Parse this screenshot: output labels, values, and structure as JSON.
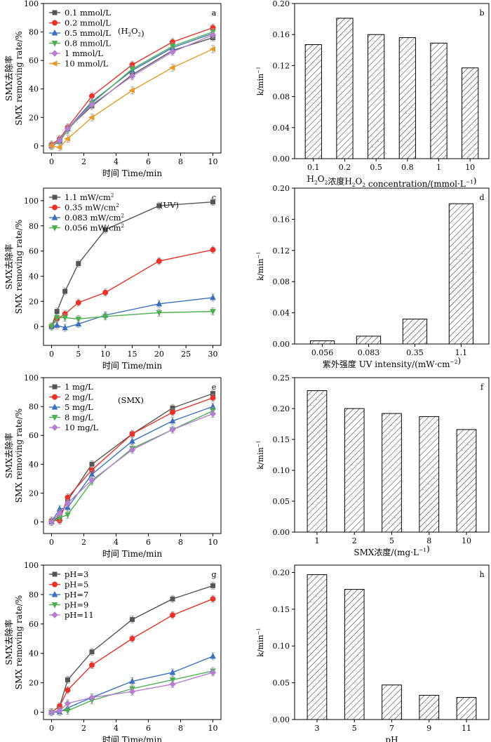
{
  "chart_data": [
    {
      "type": "line",
      "panel_letter": "a",
      "xlabel": "时间 Time/min",
      "ylabel_cn": "SMX去除率",
      "ylabel_en": "SMX removing rate/%",
      "xlim": [
        -0.5,
        10.5
      ],
      "ylim": [
        -5,
        100
      ],
      "xticks": [
        0,
        2,
        4,
        6,
        8,
        10
      ],
      "yticks": [
        0,
        20,
        40,
        60,
        80,
        100
      ],
      "legend_note": "(H2O2)",
      "legend_placement": "top-left",
      "series": [
        {
          "name": "0.1 mmol/L",
          "color": "#555555",
          "marker": "square",
          "x": [
            0,
            0.5,
            1,
            2.5,
            5,
            7.5,
            10
          ],
          "y": [
            0,
            3,
            12,
            28,
            50,
            67,
            76
          ]
        },
        {
          "name": "0.2 mmol/L",
          "color": "#e8332a",
          "marker": "circle",
          "x": [
            0,
            0.5,
            1,
            2.5,
            5,
            7.5,
            10
          ],
          "y": [
            1,
            5,
            13,
            35,
            57,
            73,
            83
          ]
        },
        {
          "name": "0.5 mmol/L",
          "color": "#3b6fbf",
          "marker": "triangle-up",
          "x": [
            0,
            0.5,
            1,
            2.5,
            5,
            7.5,
            10
          ],
          "y": [
            0,
            4,
            12,
            31,
            53,
            69,
            79
          ]
        },
        {
          "name": "0.8 mmol/L",
          "color": "#4caf50",
          "marker": "triangle-down",
          "x": [
            0,
            0.5,
            1,
            2.5,
            5,
            7.5,
            10
          ],
          "y": [
            0,
            3,
            11,
            30,
            54,
            70,
            80
          ]
        },
        {
          "name": "1 mmol/L",
          "color": "#b57fd0",
          "marker": "diamond",
          "x": [
            0,
            0.5,
            1,
            2.5,
            5,
            7.5,
            10
          ],
          "y": [
            0,
            4,
            12,
            29,
            49,
            66,
            78
          ]
        },
        {
          "name": "10 mmol/L",
          "color": "#e89a28",
          "marker": "triangle-left",
          "x": [
            0,
            0.5,
            1,
            2.5,
            5,
            7.5,
            10
          ],
          "y": [
            0,
            -1,
            5,
            20,
            39,
            55,
            68
          ]
        }
      ]
    },
    {
      "type": "bar",
      "panel_letter": "b",
      "xlabel": "H2O2浓度H2O2 concentration/(mmol·L-1)",
      "ylabel": "k/min-1",
      "categories": [
        "0.1",
        "0.2",
        "0.5",
        "0.8",
        "1",
        "10"
      ],
      "values": [
        0.147,
        0.181,
        0.16,
        0.156,
        0.149,
        0.117
      ],
      "ylim": [
        0,
        0.2
      ],
      "yticks": [
        "0.00",
        "0.04",
        "0.08",
        "0.12",
        "0.16",
        "0.20"
      ]
    },
    {
      "type": "line",
      "panel_letter": "c",
      "xlabel": "时间 Time/min",
      "ylabel_cn": "SMX去除率",
      "ylabel_en": "SMX removing rate/%",
      "xlim": [
        -1.5,
        31.5
      ],
      "ylim": [
        -15,
        110
      ],
      "xticks": [
        0,
        5,
        10,
        15,
        20,
        25,
        30
      ],
      "yticks": [
        0,
        20,
        40,
        60,
        80,
        100
      ],
      "legend_note": "(UV)",
      "legend_placement": "top-left",
      "series": [
        {
          "name": "1.1 mW/cm2",
          "color": "#555555",
          "marker": "square",
          "x": [
            0,
            1,
            2.5,
            5,
            10,
            20,
            30
          ],
          "y": [
            0,
            12,
            28,
            50,
            77,
            96,
            99
          ]
        },
        {
          "name": "0.35 mW/cm2",
          "color": "#e8332a",
          "marker": "circle",
          "x": [
            0,
            1,
            2.5,
            5,
            10,
            20,
            30
          ],
          "y": [
            0,
            6,
            10,
            19,
            27,
            52,
            61
          ]
        },
        {
          "name": "0.083 mW/cm2",
          "color": "#3b6fbf",
          "marker": "triangle-up",
          "x": [
            0,
            1,
            2.5,
            5,
            10,
            20,
            30
          ],
          "y": [
            0,
            1,
            -1,
            2,
            9,
            18,
            23
          ]
        },
        {
          "name": "0.056 mW/cm2",
          "color": "#4caf50",
          "marker": "triangle-down",
          "x": [
            0,
            1,
            2.5,
            5,
            10,
            20,
            30
          ],
          "y": [
            0,
            7,
            7,
            6,
            8,
            11,
            12
          ]
        }
      ]
    },
    {
      "type": "bar",
      "panel_letter": "d",
      "xlabel": "紫外强度 UV intensity/(mW·cm-2)",
      "ylabel": "k/min-1",
      "categories": [
        "0.056",
        "0.083",
        "0.35",
        "1.1"
      ],
      "values": [
        0.004,
        0.01,
        0.032,
        0.18
      ],
      "ylim": [
        0,
        0.2
      ],
      "yticks": [
        "0.00",
        "0.04",
        "0.08",
        "0.12",
        "0.16",
        "0.20"
      ]
    },
    {
      "type": "line",
      "panel_letter": "e",
      "xlabel": "时间 Time/min",
      "ylabel_cn": "SMX去除率",
      "ylabel_en": "SMX removing rate/%",
      "xlim": [
        -0.5,
        10.5
      ],
      "ylim": [
        -8,
        100
      ],
      "xticks": [
        0,
        2,
        4,
        6,
        8,
        10
      ],
      "yticks": [
        0,
        20,
        40,
        60,
        80,
        100
      ],
      "legend_note": "(SMX)",
      "legend_placement": "top-left",
      "series": [
        {
          "name": "1 mg/L",
          "color": "#555555",
          "marker": "square",
          "x": [
            0,
            0.5,
            1,
            2.5,
            5,
            7.5,
            10
          ],
          "y": [
            0,
            4,
            15,
            40,
            61,
            79,
            89
          ]
        },
        {
          "name": "2 mg/L",
          "color": "#e8332a",
          "marker": "circle",
          "x": [
            0,
            0.5,
            1,
            2.5,
            5,
            7.5,
            10
          ],
          "y": [
            1,
            1,
            17,
            36,
            61,
            76,
            86
          ]
        },
        {
          "name": "5 mg/L",
          "color": "#3b6fbf",
          "marker": "triangle-up",
          "x": [
            0,
            0.5,
            1,
            2.5,
            5,
            7.5,
            10
          ],
          "y": [
            0,
            9,
            10,
            33,
            56,
            70,
            80
          ]
        },
        {
          "name": "8 mg/L",
          "color": "#4caf50",
          "marker": "triangle-down",
          "x": [
            0,
            0.5,
            1,
            2.5,
            5,
            7.5,
            10
          ],
          "y": [
            0,
            3,
            5,
            28,
            51,
            64,
            77
          ]
        },
        {
          "name": "10 mg/L",
          "color": "#b57fd0",
          "marker": "diamond",
          "x": [
            0,
            0.5,
            1,
            2.5,
            5,
            7.5,
            10
          ],
          "y": [
            0,
            6,
            13,
            29,
            50,
            64,
            75
          ]
        }
      ]
    },
    {
      "type": "bar",
      "panel_letter": "f",
      "xlabel": "SMX浓度/(mg·L-1)",
      "ylabel": "k/min-1",
      "categories": [
        "1",
        "2",
        "5",
        "8",
        "10"
      ],
      "values": [
        0.229,
        0.2,
        0.192,
        0.187,
        0.166
      ],
      "ylim": [
        0,
        0.25
      ],
      "yticks": [
        "0.00",
        "0.05",
        "0.10",
        "0.15",
        "0.20",
        "0.25"
      ]
    },
    {
      "type": "line",
      "panel_letter": "g",
      "xlabel": "时间 Time/min",
      "ylabel_cn": "SMX去除率",
      "ylabel_en": "SMX removing rate/%",
      "xlim": [
        -0.5,
        10.5
      ],
      "ylim": [
        -5,
        100
      ],
      "xticks": [
        0,
        2,
        4,
        6,
        8,
        10
      ],
      "yticks": [
        0,
        20,
        40,
        60,
        80,
        100
      ],
      "legend_placement": "top-left",
      "series": [
        {
          "name": "pH=3",
          "color": "#555555",
          "marker": "square",
          "x": [
            0,
            0.5,
            1,
            2.5,
            5,
            7.5,
            10
          ],
          "y": [
            0,
            4,
            22,
            41,
            63,
            77,
            86
          ]
        },
        {
          "name": "pH=5",
          "color": "#e8332a",
          "marker": "circle",
          "x": [
            0,
            0.5,
            1,
            2.5,
            5,
            7.5,
            10
          ],
          "y": [
            0,
            4,
            15,
            32,
            50,
            66,
            77
          ]
        },
        {
          "name": "pH=7",
          "color": "#3b6fbf",
          "marker": "triangle-up",
          "x": [
            0,
            0.5,
            1,
            2.5,
            5,
            7.5,
            10
          ],
          "y": [
            0,
            0,
            3,
            10,
            21,
            27,
            38
          ]
        },
        {
          "name": "pH=9",
          "color": "#4caf50",
          "marker": "triangle-down",
          "x": [
            0,
            0.5,
            1,
            2.5,
            5,
            7.5,
            10
          ],
          "y": [
            0,
            1,
            1,
            8,
            16,
            22,
            28
          ]
        },
        {
          "name": "pH=11",
          "color": "#b57fd0",
          "marker": "diamond",
          "x": [
            0,
            0.5,
            1,
            2.5,
            5,
            7.5,
            10
          ],
          "y": [
            0,
            1,
            6,
            10,
            14,
            19,
            27
          ]
        }
      ]
    },
    {
      "type": "bar",
      "panel_letter": "h",
      "xlabel": "pH",
      "ylabel": "k/min-1",
      "categories": [
        "3",
        "5",
        "7",
        "9",
        "11"
      ],
      "values": [
        0.197,
        0.177,
        0.047,
        0.033,
        0.03
      ],
      "ylim": [
        0,
        0.21
      ],
      "yticks": [
        "0.00",
        "0.05",
        "0.10",
        "0.15",
        "0.20"
      ]
    }
  ]
}
